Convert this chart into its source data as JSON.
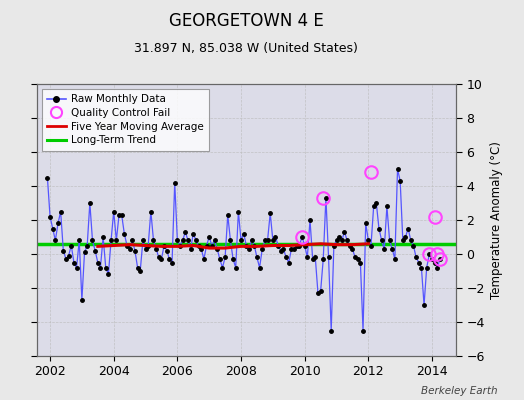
{
  "title": "GEORGETOWN 4 E",
  "subtitle": "31.897 N, 85.038 W (United States)",
  "ylabel": "Temperature Anomaly (°C)",
  "watermark": "Berkeley Earth",
  "ylim": [
    -6,
    10
  ],
  "xlim": [
    2001.58,
    2014.75
  ],
  "yticks": [
    -6,
    -4,
    -2,
    0,
    2,
    4,
    6,
    8,
    10
  ],
  "xticks": [
    2002,
    2004,
    2006,
    2008,
    2010,
    2012,
    2014
  ],
  "long_term_trend_y": 0.6,
  "fig_bg_color": "#e8e8e8",
  "plot_bg_color": "#dcdce8",
  "raw_data": {
    "x": [
      2001.917,
      2002.0,
      2002.083,
      2002.167,
      2002.25,
      2002.333,
      2002.417,
      2002.5,
      2002.583,
      2002.667,
      2002.75,
      2002.833,
      2002.917,
      2003.0,
      2003.083,
      2003.167,
      2003.25,
      2003.333,
      2003.417,
      2003.5,
      2003.583,
      2003.667,
      2003.75,
      2003.833,
      2003.917,
      2004.0,
      2004.083,
      2004.167,
      2004.25,
      2004.333,
      2004.417,
      2004.5,
      2004.583,
      2004.667,
      2004.75,
      2004.833,
      2004.917,
      2005.0,
      2005.083,
      2005.167,
      2005.25,
      2005.333,
      2005.417,
      2005.5,
      2005.583,
      2005.667,
      2005.75,
      2005.833,
      2005.917,
      2006.0,
      2006.083,
      2006.167,
      2006.25,
      2006.333,
      2006.417,
      2006.5,
      2006.583,
      2006.667,
      2006.75,
      2006.833,
      2006.917,
      2007.0,
      2007.083,
      2007.167,
      2007.25,
      2007.333,
      2007.417,
      2007.5,
      2007.583,
      2007.667,
      2007.75,
      2007.833,
      2007.917,
      2008.0,
      2008.083,
      2008.167,
      2008.25,
      2008.333,
      2008.417,
      2008.5,
      2008.583,
      2008.667,
      2008.75,
      2008.833,
      2008.917,
      2009.0,
      2009.083,
      2009.167,
      2009.25,
      2009.333,
      2009.417,
      2009.5,
      2009.583,
      2009.667,
      2009.75,
      2009.833,
      2009.917,
      2010.0,
      2010.083,
      2010.167,
      2010.25,
      2010.333,
      2010.417,
      2010.5,
      2010.583,
      2010.667,
      2010.75,
      2010.833,
      2010.917,
      2011.0,
      2011.083,
      2011.167,
      2011.25,
      2011.333,
      2011.417,
      2011.5,
      2011.583,
      2011.667,
      2011.75,
      2011.833,
      2011.917,
      2012.0,
      2012.083,
      2012.167,
      2012.25,
      2012.333,
      2012.417,
      2012.5,
      2012.583,
      2012.667,
      2012.75,
      2012.833,
      2012.917,
      2013.0,
      2013.083,
      2013.167,
      2013.25,
      2013.333,
      2013.417,
      2013.5,
      2013.583,
      2013.667,
      2013.75,
      2013.833,
      2013.917,
      2014.0,
      2014.083,
      2014.167,
      2014.25
    ],
    "y": [
      4.5,
      2.2,
      1.5,
      0.8,
      1.8,
      2.5,
      0.2,
      -0.3,
      -0.1,
      0.5,
      -0.5,
      -0.8,
      0.8,
      -2.7,
      0.1,
      0.5,
      3.0,
      0.8,
      0.2,
      -0.5,
      -0.8,
      1.0,
      -0.8,
      -1.2,
      0.8,
      2.5,
      0.8,
      2.3,
      2.3,
      1.2,
      0.5,
      0.3,
      0.8,
      0.2,
      -0.8,
      -1.0,
      0.8,
      0.3,
      0.5,
      2.5,
      0.8,
      0.3,
      -0.2,
      -0.3,
      0.5,
      0.2,
      -0.3,
      -0.5,
      4.2,
      0.8,
      0.5,
      0.8,
      1.3,
      0.8,
      0.3,
      1.2,
      0.8,
      0.5,
      0.3,
      -0.3,
      0.5,
      1.0,
      0.5,
      0.8,
      0.3,
      -0.3,
      -0.8,
      -0.2,
      2.3,
      0.8,
      -0.3,
      -0.8,
      2.5,
      0.8,
      1.2,
      0.5,
      0.3,
      0.8,
      0.5,
      -0.2,
      -0.8,
      0.3,
      0.8,
      0.8,
      2.4,
      0.8,
      1.0,
      0.5,
      0.2,
      0.3,
      -0.2,
      -0.5,
      0.3,
      0.3,
      0.5,
      0.5,
      1.0,
      0.5,
      -0.2,
      2.0,
      -0.3,
      -0.2,
      -2.3,
      -2.2,
      -0.3,
      3.3,
      -0.2,
      -4.5,
      0.5,
      0.8,
      1.0,
      0.8,
      1.3,
      0.8,
      0.5,
      0.3,
      -0.2,
      -0.3,
      -0.5,
      -4.5,
      1.8,
      0.8,
      0.5,
      2.8,
      3.0,
      1.5,
      0.8,
      0.3,
      2.8,
      0.8,
      0.3,
      -0.3,
      5.0,
      4.3,
      0.8,
      1.0,
      1.5,
      0.8,
      0.5,
      -0.2,
      -0.5,
      -0.8,
      -3.0,
      -0.8,
      0.0,
      -0.3,
      -0.5,
      -0.8,
      -0.3
    ]
  },
  "qc_fail_x": [
    2012.083,
    2010.583,
    2009.917,
    2014.083,
    2014.167,
    2014.25,
    2013.917
  ],
  "qc_fail_y": [
    4.8,
    3.3,
    1.0,
    2.2,
    0.0,
    -0.3,
    0.0
  ],
  "moving_avg_x": [
    2003.5,
    2004.0,
    2004.5,
    2005.0,
    2005.5,
    2006.0,
    2006.5,
    2007.0,
    2007.5,
    2008.0,
    2008.5,
    2009.0,
    2009.5,
    2010.0,
    2010.5,
    2011.0,
    2011.5,
    2012.0
  ],
  "moving_avg_y": [
    0.45,
    0.5,
    0.55,
    0.5,
    0.45,
    0.45,
    0.5,
    0.35,
    0.35,
    0.45,
    0.45,
    0.5,
    0.5,
    0.55,
    0.6,
    0.55,
    0.55,
    0.6
  ],
  "colors": {
    "raw_line": "#5555ff",
    "raw_marker": "#000000",
    "qc_fail": "#ff44ff",
    "moving_avg": "#dd0000",
    "long_term": "#00cc00",
    "grid": "#bbbbbb"
  }
}
